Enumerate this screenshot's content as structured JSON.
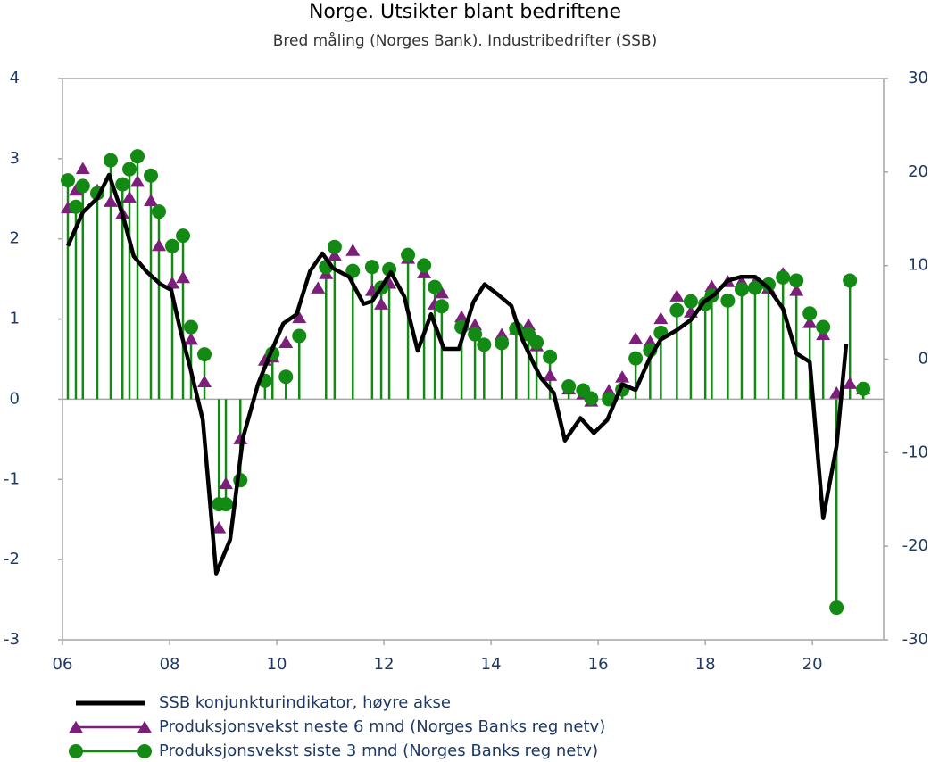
{
  "chart_data": {
    "type": "line",
    "title": "Norge. Utsikter blant bedriftene",
    "subtitle": "Bred måling (Norges Bank). Industribedrifter (SSB)",
    "xlim": [
      2006,
      2021.33
    ],
    "xticks": [
      {
        "value": 2006,
        "label": "06"
      },
      {
        "value": 2008,
        "label": "08"
      },
      {
        "value": 2010,
        "label": "10"
      },
      {
        "value": 2012,
        "label": "12"
      },
      {
        "value": 2014,
        "label": "14"
      },
      {
        "value": 2016,
        "label": "16"
      },
      {
        "value": 2018,
        "label": "18"
      },
      {
        "value": 2020,
        "label": "20"
      }
    ],
    "ylim": [
      -3,
      4
    ],
    "yticks": [
      -3,
      -2,
      -1,
      0,
      1,
      2,
      3,
      4
    ],
    "y2lim": [
      -30,
      30
    ],
    "y2ticks": [
      -30,
      -20,
      -10,
      0,
      10,
      20,
      30
    ],
    "x": [
      2006.1,
      2006.25,
      2006.38,
      2006.65,
      2006.9,
      2007.12,
      2007.25,
      2007.4,
      2007.65,
      2007.8,
      2008.05,
      2008.25,
      2008.4,
      2008.65,
      2008.92,
      2009.05,
      2009.32,
      2009.78,
      2009.92,
      2010.17,
      2010.42,
      2010.77,
      2010.92,
      2011.08,
      2011.42,
      2011.78,
      2011.95,
      2012.1,
      2012.45,
      2012.75,
      2012.95,
      2013.08,
      2013.45,
      2013.7,
      2013.87,
      2014.2,
      2014.47,
      2014.7,
      2014.85,
      2015.1,
      2015.45,
      2015.72,
      2015.87,
      2016.2,
      2016.45,
      2016.7,
      2016.97,
      2017.17,
      2017.47,
      2017.73,
      2018.0,
      2018.12,
      2018.42,
      2018.68,
      2018.93,
      2019.18,
      2019.45,
      2019.7,
      2019.95,
      2020.2,
      2020.45,
      2020.7,
      2020.95
    ],
    "series": [
      {
        "name": "SSB konjunkturindikator, høyre akse",
        "color": "#000000",
        "axis": "y2",
        "x": [
          2006.1,
          2006.38,
          2006.65,
          2006.87,
          2007.12,
          2007.33,
          2007.58,
          2007.83,
          2008.03,
          2008.2,
          2008.38,
          2008.62,
          2008.87,
          2009.13,
          2009.37,
          2009.65,
          2009.85,
          2010.12,
          2010.37,
          2010.62,
          2010.85,
          2011.05,
          2011.35,
          2011.62,
          2011.78,
          2011.92,
          2012.13,
          2012.38,
          2012.63,
          2012.88,
          2013.12,
          2013.4,
          2013.67,
          2013.88,
          2014.13,
          2014.38,
          2014.57,
          2014.78,
          2014.93,
          2015.17,
          2015.38,
          2015.67,
          2015.92,
          2016.17,
          2016.45,
          2016.7,
          2016.97,
          2017.17,
          2017.47,
          2017.73,
          2017.97,
          2018.17,
          2018.42,
          2018.67,
          2018.93,
          2019.18,
          2019.45,
          2019.7,
          2019.95,
          2020.2,
          2020.45,
          2020.63
        ],
        "values": [
          12.1,
          15.7,
          17.2,
          19.7,
          15.5,
          11.0,
          9.3,
          8.0,
          7.4,
          3.1,
          -0.8,
          -6.5,
          -22.9,
          -19.3,
          -8.4,
          -2.7,
          0.2,
          3.8,
          4.8,
          9.4,
          11.3,
          9.7,
          8.8,
          5.9,
          6.2,
          7.4,
          9.3,
          6.7,
          0.9,
          4.8,
          1.1,
          1.1,
          6.1,
          8.0,
          6.9,
          5.7,
          2.3,
          -0.3,
          -2.0,
          -3.6,
          -8.7,
          -6.3,
          -7.9,
          -6.5,
          -2.7,
          -3.3,
          0.2,
          2.1,
          3.1,
          4.2,
          6.1,
          6.9,
          8.4,
          8.8,
          8.8,
          7.6,
          5.4,
          0.6,
          -0.3,
          -17.0,
          -9.3,
          1.6
        ]
      },
      {
        "name": "Produksjonsvekst neste 6 mnd (Norges Banks reg netv)",
        "color": "#7b1f7b",
        "marker": "triangle",
        "values": [
          2.39,
          2.61,
          2.88,
          2.61,
          2.47,
          2.32,
          2.52,
          2.72,
          2.48,
          1.92,
          1.45,
          1.52,
          0.75,
          0.22,
          -1.6,
          -1.05,
          -0.49,
          0.49,
          0.53,
          0.71,
          1.02,
          1.39,
          1.57,
          1.8,
          1.86,
          1.36,
          1.19,
          1.45,
          1.76,
          1.58,
          1.19,
          1.33,
          1.03,
          0.93,
          null,
          0.81,
          0.88,
          0.93,
          0.67,
          0.3,
          0.13,
          0.07,
          -0.02,
          0.11,
          0.28,
          0.76,
          0.72,
          1.01,
          1.29,
          1.09,
          1.22,
          1.41,
          1.47,
          1.47,
          1.46,
          1.39,
          1.57,
          1.36,
          0.96,
          0.81,
          0.08,
          0.2,
          0.13
        ]
      },
      {
        "name": "Produksjonsvekst siste 3 mnd (Norges Banks reg netv)",
        "color": "#138a13",
        "marker": "circle",
        "stems": true,
        "values": [
          2.73,
          2.4,
          2.66,
          2.57,
          2.98,
          2.68,
          2.87,
          3.03,
          2.79,
          2.34,
          1.91,
          2.04,
          0.9,
          0.56,
          -1.31,
          -1.31,
          -1.01,
          0.23,
          0.57,
          0.28,
          0.79,
          null,
          1.65,
          1.9,
          1.6,
          1.65,
          1.39,
          1.62,
          1.8,
          1.67,
          1.4,
          1.16,
          0.9,
          0.81,
          0.68,
          0.7,
          0.88,
          0.81,
          0.71,
          0.53,
          0.16,
          0.11,
          0.01,
          0.0,
          0.12,
          0.51,
          0.61,
          0.83,
          1.11,
          1.22,
          1.19,
          1.29,
          1.23,
          1.37,
          1.39,
          1.43,
          1.52,
          1.48,
          1.07,
          0.9,
          -2.6,
          1.48,
          0.13
        ]
      }
    ]
  }
}
